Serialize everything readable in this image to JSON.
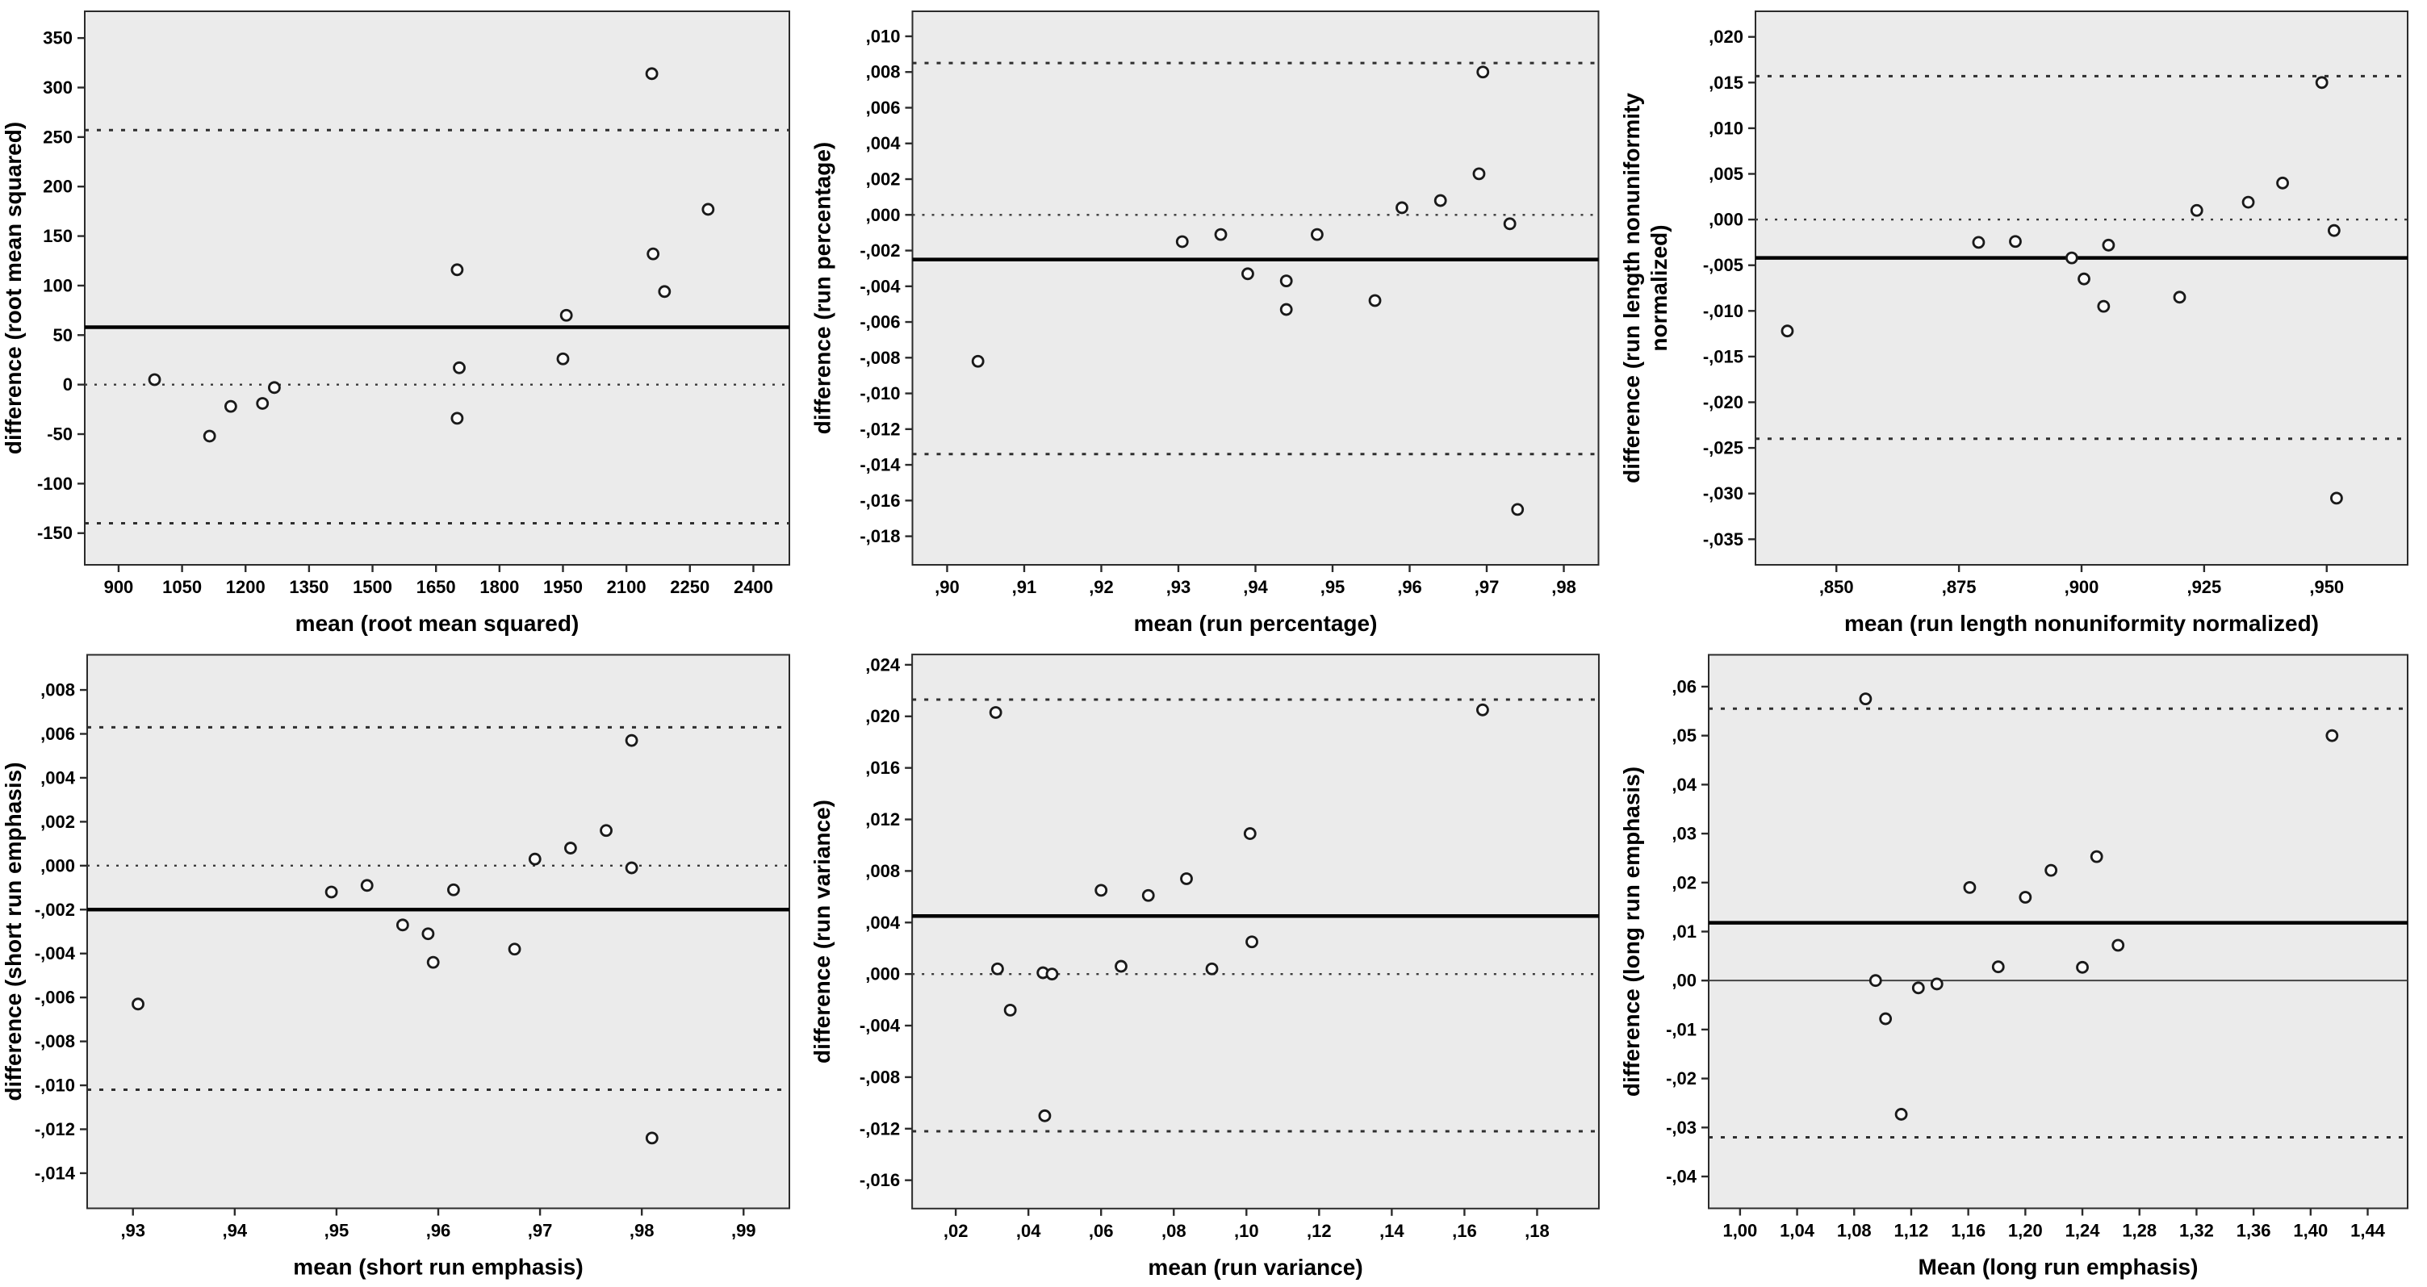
{
  "figure_type": "bland-altman-grid",
  "colors": {
    "page_bg": "#ffffff",
    "plot_bg": "#ebebeb",
    "axis": "#2b2b2b",
    "mean_line": "#000000",
    "limit_line": "#2f2f2f",
    "zero_line": "#3a3a3a",
    "point_stroke": "#1a1a1a",
    "point_fill": "#fbfbfb",
    "text": "#000000"
  },
  "chart_data": [
    {
      "type": "scatter",
      "panel": "top-left",
      "xlabel": "mean (root mean squared)",
      "ylabel_lines": [
        "difference (root mean squared)"
      ],
      "xlim": [
        820,
        2485
      ],
      "ylim": [
        -182,
        377
      ],
      "x_ticks": {
        "values": [
          900,
          1050,
          1200,
          1350,
          1500,
          1650,
          1800,
          1950,
          2100,
          2250,
          2400
        ],
        "labels": [
          "900",
          "1050",
          "1200",
          "1350",
          "1500",
          "1650",
          "1800",
          "1950",
          "2100",
          "2250",
          "2400"
        ]
      },
      "y_ticks": {
        "values": [
          350,
          300,
          250,
          200,
          150,
          100,
          50,
          0,
          -50,
          -100,
          -150
        ],
        "labels": [
          "350",
          "300",
          "250",
          "200",
          "150",
          "100",
          "50",
          "0",
          "-50",
          "-100",
          "-150"
        ]
      },
      "lines": {
        "mean": 58,
        "upper_limit": 257,
        "lower_limit": -140,
        "zero": 0,
        "zero_style": "dotted"
      },
      "points": [
        [
          985,
          5
        ],
        [
          1115,
          -52
        ],
        [
          1165,
          -22
        ],
        [
          1240,
          -19
        ],
        [
          1268,
          -3
        ],
        [
          1700,
          116
        ],
        [
          1705,
          17
        ],
        [
          1700,
          -34
        ],
        [
          1958,
          70
        ],
        [
          1950,
          26
        ],
        [
          2160,
          314
        ],
        [
          2163,
          132
        ],
        [
          2190,
          94
        ],
        [
          2293,
          177
        ]
      ]
    },
    {
      "type": "scatter",
      "panel": "top-middle",
      "xlabel": "mean (run percentage)",
      "ylabel_lines": [
        "difference (run percentage)"
      ],
      "xlim": [
        0.8955,
        0.9845
      ],
      "ylim": [
        -0.0196,
        0.0114
      ],
      "x_ticks": {
        "values": [
          0.9,
          0.91,
          0.92,
          0.93,
          0.94,
          0.95,
          0.96,
          0.97,
          0.98
        ],
        "labels": [
          ",90",
          ",91",
          ",92",
          ",93",
          ",94",
          ",95",
          ",96",
          ",97",
          ",98"
        ]
      },
      "y_ticks": {
        "values": [
          0.01,
          0.008,
          0.006,
          0.004,
          0.002,
          0.0,
          -0.002,
          -0.004,
          -0.006,
          -0.008,
          -0.01,
          -0.012,
          -0.014,
          -0.016,
          -0.018
        ],
        "labels": [
          ",010",
          ",008",
          ",006",
          ",004",
          ",002",
          ",000",
          "-,002",
          "-,004",
          "-,006",
          "-,008",
          "-,010",
          "-,012",
          "-,014",
          "-,016",
          "-,018"
        ]
      },
      "lines": {
        "mean": -0.0025,
        "upper_limit": 0.0085,
        "lower_limit": -0.0134,
        "zero": 0.0,
        "zero_style": "dotted"
      },
      "points": [
        [
          0.904,
          -0.0082
        ],
        [
          0.9305,
          -0.0015
        ],
        [
          0.9355,
          -0.0011
        ],
        [
          0.939,
          -0.0033
        ],
        [
          0.944,
          -0.0037
        ],
        [
          0.944,
          -0.0053
        ],
        [
          0.948,
          -0.0011
        ],
        [
          0.9555,
          -0.0048
        ],
        [
          0.959,
          0.0004
        ],
        [
          0.964,
          0.0008
        ],
        [
          0.969,
          0.0023
        ],
        [
          0.9695,
          0.008
        ],
        [
          0.973,
          -0.0005
        ],
        [
          0.974,
          -0.0165
        ]
      ]
    },
    {
      "type": "scatter",
      "panel": "top-right",
      "xlabel": "mean (run length nonuniformity normalized)",
      "ylabel_lines": [
        "difference (run length nonuniformity",
        "normalized)"
      ],
      "xlim": [
        0.8335,
        0.9665
      ],
      "ylim": [
        -0.0378,
        0.0228
      ],
      "x_ticks": {
        "values": [
          0.85,
          0.875,
          0.9,
          0.925,
          0.95
        ],
        "labels": [
          ",850",
          ",875",
          ",900",
          ",925",
          ",950"
        ]
      },
      "y_ticks": {
        "values": [
          0.02,
          0.015,
          0.01,
          0.005,
          0.0,
          -0.005,
          -0.01,
          -0.015,
          -0.02,
          -0.025,
          -0.03,
          -0.035
        ],
        "labels": [
          ",020",
          ",015",
          ",010",
          ",005",
          ",000",
          "-,005",
          "-,010",
          "-,015",
          "-,020",
          "-,025",
          "-,030",
          "-,035"
        ]
      },
      "lines": {
        "mean": -0.0042,
        "upper_limit": 0.0157,
        "lower_limit": -0.024,
        "zero": 0.0,
        "zero_style": "dotted"
      },
      "points": [
        [
          0.84,
          -0.0122
        ],
        [
          0.879,
          -0.0025
        ],
        [
          0.8865,
          -0.0024
        ],
        [
          0.898,
          -0.0042
        ],
        [
          0.9005,
          -0.0065
        ],
        [
          0.9055,
          -0.0028
        ],
        [
          0.9045,
          -0.0095
        ],
        [
          0.92,
          -0.0085
        ],
        [
          0.9235,
          0.001
        ],
        [
          0.934,
          0.0019
        ],
        [
          0.941,
          0.004
        ],
        [
          0.949,
          0.015
        ],
        [
          0.9515,
          -0.0012
        ],
        [
          0.952,
          -0.0305
        ]
      ]
    },
    {
      "type": "scatter",
      "panel": "bottom-left",
      "xlabel": "mean (short run emphasis)",
      "ylabel_lines": [
        "difference (short run emphasis)"
      ],
      "xlim": [
        0.9255,
        0.9945
      ],
      "ylim": [
        -0.0156,
        0.0096
      ],
      "x_ticks": {
        "values": [
          0.93,
          0.94,
          0.95,
          0.96,
          0.97,
          0.98,
          0.99
        ],
        "labels": [
          ",93",
          ",94",
          ",95",
          ",96",
          ",97",
          ",98",
          ",99"
        ]
      },
      "y_ticks": {
        "values": [
          0.008,
          0.006,
          0.004,
          0.002,
          0.0,
          -0.002,
          -0.004,
          -0.006,
          -0.008,
          -0.01,
          -0.012,
          -0.014
        ],
        "labels": [
          ",008",
          ",006",
          ",004",
          ",002",
          ",000",
          "-,002",
          "-,004",
          "-,006",
          "-,008",
          "-,010",
          "-,012",
          "-,014"
        ]
      },
      "lines": {
        "mean": -0.002,
        "upper_limit": 0.0063,
        "lower_limit": -0.0102,
        "zero": 0.0,
        "zero_style": "dotted"
      },
      "points": [
        [
          0.9305,
          -0.0063
        ],
        [
          0.9495,
          -0.0012
        ],
        [
          0.953,
          -0.0009
        ],
        [
          0.9565,
          -0.0027
        ],
        [
          0.959,
          -0.0031
        ],
        [
          0.9595,
          -0.0044
        ],
        [
          0.9615,
          -0.0011
        ],
        [
          0.9675,
          -0.0038
        ],
        [
          0.9695,
          0.0003
        ],
        [
          0.973,
          0.0008
        ],
        [
          0.9765,
          0.0016
        ],
        [
          0.979,
          0.0057
        ],
        [
          0.979,
          -0.0001
        ],
        [
          0.981,
          -0.0124
        ]
      ]
    },
    {
      "type": "scatter",
      "panel": "bottom-middle",
      "xlabel": "mean (run variance)",
      "ylabel_lines": [
        "difference (run variance)"
      ],
      "xlim": [
        0.008,
        0.197
      ],
      "ylim": [
        -0.0182,
        0.0248
      ],
      "x_ticks": {
        "values": [
          0.02,
          0.04,
          0.06,
          0.08,
          0.1,
          0.12,
          0.14,
          0.16,
          0.18
        ],
        "labels": [
          ",02",
          ",04",
          ",06",
          ",08",
          ",10",
          ",12",
          ",14",
          ",16",
          ",18"
        ]
      },
      "y_ticks": {
        "values": [
          0.024,
          0.02,
          0.016,
          0.012,
          0.008,
          0.004,
          0.0,
          -0.004,
          -0.008,
          -0.012,
          -0.016
        ],
        "labels": [
          ",024",
          ",020",
          ",016",
          ",012",
          ",008",
          ",004",
          ",000",
          "-,004",
          "-,008",
          "-,012",
          "-,016"
        ]
      },
      "lines": {
        "mean": 0.0045,
        "upper_limit": 0.0213,
        "lower_limit": -0.0122,
        "zero": 0.0,
        "zero_style": "dotted"
      },
      "points": [
        [
          0.031,
          0.0203
        ],
        [
          0.0315,
          0.0004
        ],
        [
          0.035,
          -0.0028
        ],
        [
          0.044,
          0.0001
        ],
        [
          0.0465,
          0.0
        ],
        [
          0.0445,
          -0.011
        ],
        [
          0.06,
          0.0065
        ],
        [
          0.0655,
          0.0006
        ],
        [
          0.073,
          0.0061
        ],
        [
          0.0835,
          0.0074
        ],
        [
          0.0905,
          0.0004
        ],
        [
          0.101,
          0.0109
        ],
        [
          0.1015,
          0.0025
        ],
        [
          0.165,
          0.0205
        ]
      ]
    },
    {
      "type": "scatter",
      "panel": "bottom-right",
      "xlabel": "Mean (long run emphasis)",
      "ylabel_lines": [
        "difference (long run emphasis)"
      ],
      "xlim": [
        0.978,
        1.468
      ],
      "ylim": [
        -0.0465,
        0.0665
      ],
      "x_ticks": {
        "values": [
          1.0,
          1.04,
          1.08,
          1.12,
          1.16,
          1.2,
          1.24,
          1.28,
          1.32,
          1.36,
          1.4,
          1.44
        ],
        "labels": [
          "1,00",
          "1,04",
          "1,08",
          "1,12",
          "1,16",
          "1,20",
          "1,24",
          "1,28",
          "1,32",
          "1,36",
          "1,40",
          "1,44"
        ]
      },
      "y_ticks": {
        "values": [
          0.06,
          0.05,
          0.04,
          0.03,
          0.02,
          0.01,
          0.0,
          -0.01,
          -0.02,
          -0.03,
          -0.04
        ],
        "labels": [
          ",06",
          ",05",
          ",04",
          ",03",
          ",02",
          ",01",
          ",00",
          "-,01",
          "-,02",
          "-,03",
          "-,04"
        ]
      },
      "lines": {
        "mean": 0.0118,
        "upper_limit": 0.0555,
        "lower_limit": -0.032,
        "zero": 0.0,
        "zero_style": "solid"
      },
      "points": [
        [
          1.088,
          0.0575
        ],
        [
          1.415,
          0.05
        ],
        [
          1.161,
          0.019
        ],
        [
          1.2,
          0.017
        ],
        [
          1.218,
          0.0225
        ],
        [
          1.25,
          0.0253
        ],
        [
          1.181,
          0.0028
        ],
        [
          1.24,
          0.0027
        ],
        [
          1.265,
          0.0072
        ],
        [
          1.095,
          0.0
        ],
        [
          1.125,
          -0.0015
        ],
        [
          1.138,
          -0.0007
        ],
        [
          1.102,
          -0.0078
        ],
        [
          1.113,
          -0.0273
        ]
      ]
    }
  ]
}
